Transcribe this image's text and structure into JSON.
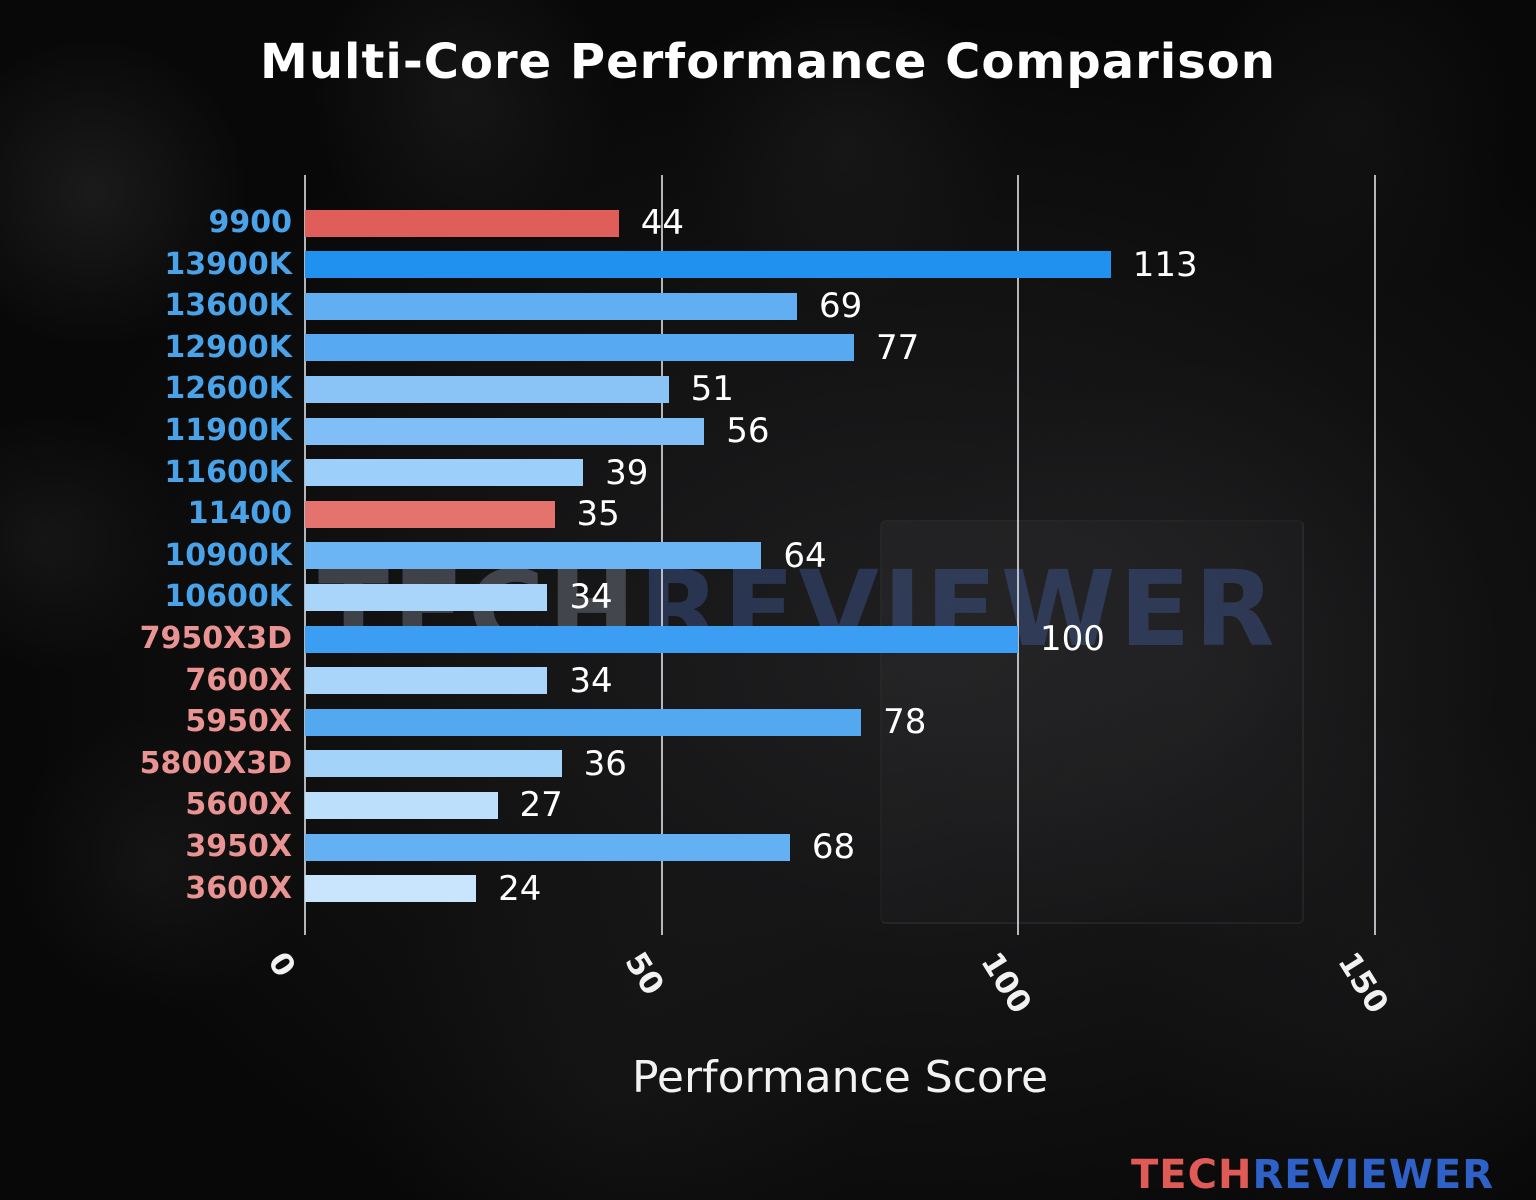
{
  "title": "Multi-Core Performance Comparison",
  "xlabel": "Performance Score",
  "watermark": {
    "part1": "TECH",
    "part2": "REVIEWER"
  },
  "logo": {
    "part1": "TECH",
    "part2": "REVIEWER",
    "color1": "#e05a56",
    "color2": "#2f62c9"
  },
  "chart_data": {
    "type": "bar",
    "orientation": "horizontal",
    "title": "Multi-Core Performance Comparison",
    "xlabel": "Performance Score",
    "xlim": [
      0,
      160
    ],
    "xticks": [
      0,
      50,
      100,
      150
    ],
    "grid": true,
    "legend": false,
    "categories": [
      "9900",
      "13900K",
      "13600K",
      "12900K",
      "12600K",
      "11900K",
      "11600K",
      "11400",
      "10900K",
      "10600K",
      "7950X3D",
      "7600X",
      "5950X",
      "5800X3D",
      "5600X",
      "3950X",
      "3600X"
    ],
    "values": [
      44,
      113,
      69,
      77,
      51,
      56,
      39,
      35,
      64,
      34,
      100,
      34,
      78,
      36,
      27,
      68,
      24
    ],
    "bar_colors": [
      "#e05e59",
      "#2191f0",
      "#61aff2",
      "#57a9f1",
      "#8ac4f7",
      "#7fbef6",
      "#9ccff9",
      "#e4736e",
      "#6cb5f4",
      "#a9d5fa",
      "#3b9ef3",
      "#a9d5fa",
      "#54a8f0",
      "#a4d3fa",
      "#bce0fc",
      "#63b0f2",
      "#c8e5fd"
    ],
    "label_colors": [
      "#4aa3e9",
      "#4aa3e9",
      "#4aa3e9",
      "#4aa3e9",
      "#4aa3e9",
      "#4aa3e9",
      "#4aa3e9",
      "#4aa3e9",
      "#4aa3e9",
      "#4aa3e9",
      "#ea9393",
      "#ea9393",
      "#ea9393",
      "#ea9393",
      "#ea9393",
      "#ea9393",
      "#ea9393"
    ]
  }
}
